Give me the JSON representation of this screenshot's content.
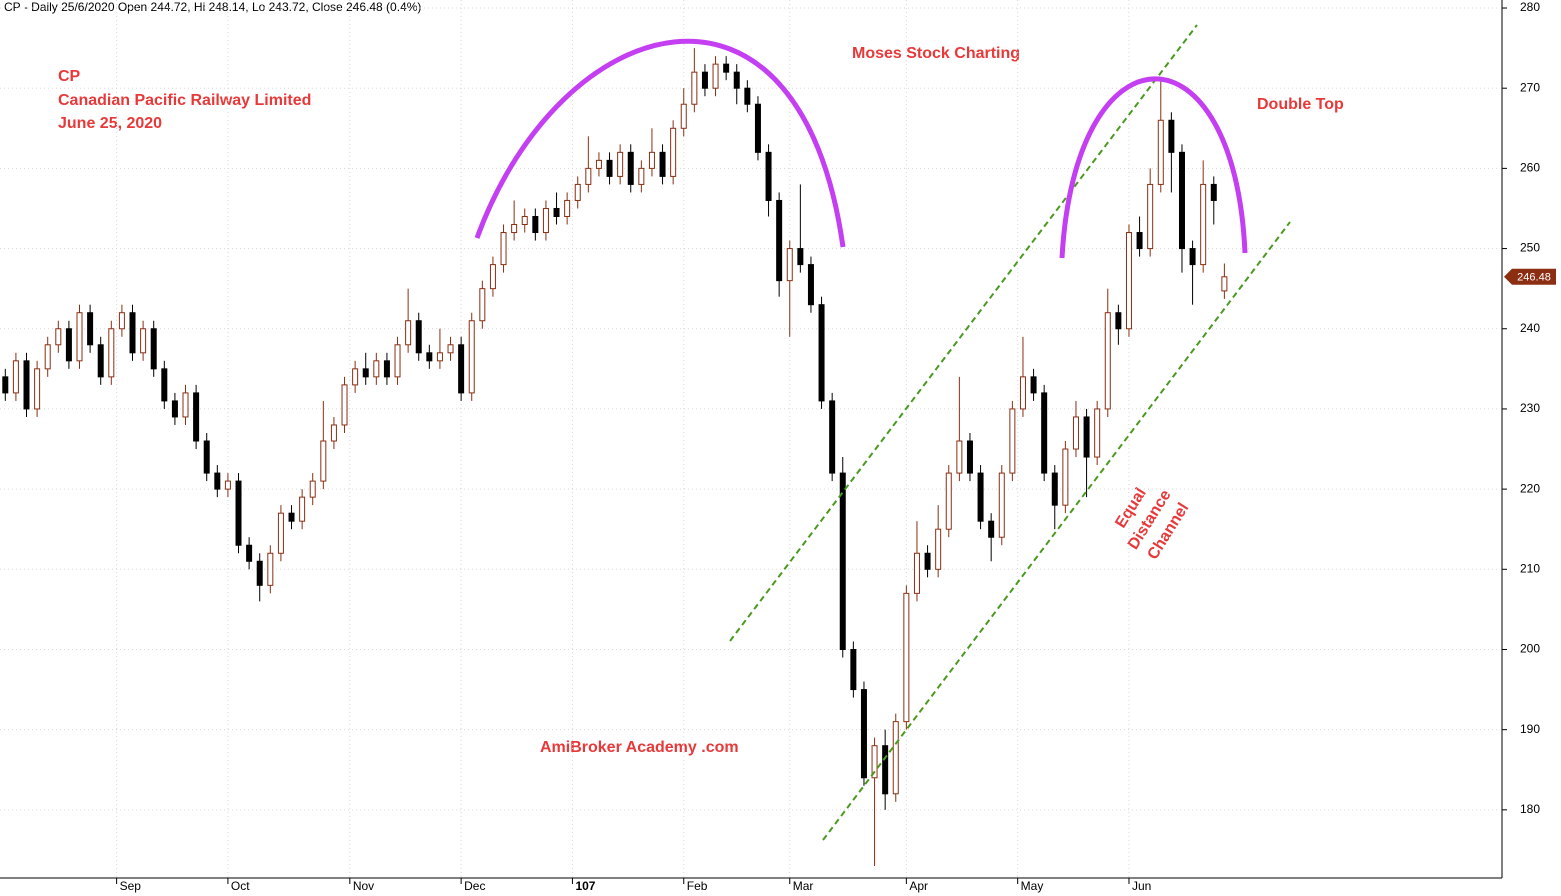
{
  "chart_data": {
    "type": "candlestick",
    "title": "CP - Daily 25/6/2020 Open 244.72, Hi 248.14, Lo 243.72, Close 246.48 (0.4%)",
    "annotations": [
      "CP",
      "Canadian Pacific Railway Limited",
      "June 25, 2020",
      "Moses Stock Charting",
      "Double Top",
      "AmiBroker Academy .com",
      "Equal",
      "Distance",
      "Channel"
    ],
    "up_color": "#8b2e12",
    "down_color": "#000000",
    "x": [
      0,
      2,
      4,
      6,
      8,
      10,
      12,
      14,
      16,
      18,
      20,
      22,
      24,
      26,
      28,
      30,
      32,
      34,
      36,
      38,
      40,
      42,
      44,
      46,
      48,
      50,
      52,
      54,
      56,
      58,
      60,
      62,
      64,
      66,
      68,
      70,
      72,
      74,
      76,
      78,
      80,
      82,
      84,
      86,
      88,
      90,
      92,
      94,
      96,
      98,
      100,
      102,
      104,
      106,
      108,
      110,
      112,
      114,
      116,
      118,
      120,
      122,
      124,
      126,
      128,
      130,
      132,
      134,
      136,
      138,
      140,
      142,
      144,
      146,
      148,
      150,
      152,
      154,
      156,
      158,
      160,
      162,
      164,
      166,
      168,
      170,
      172,
      174,
      176,
      178,
      180,
      182,
      184,
      186,
      188,
      190,
      192,
      194,
      196,
      198,
      200,
      202,
      204,
      206,
      208,
      210,
      212,
      214,
      216,
      218,
      220,
      222,
      224,
      226,
      228,
      230
    ],
    "open": [
      234,
      232,
      236,
      230,
      235,
      238,
      240,
      236,
      242,
      238,
      234,
      240,
      242,
      237,
      240,
      235,
      231,
      229,
      232,
      226,
      222,
      220,
      221,
      213,
      211,
      208,
      212,
      217,
      216,
      219,
      221,
      226,
      228,
      233,
      235,
      234,
      236,
      234,
      238,
      241,
      237,
      236,
      237,
      238,
      232,
      241,
      245,
      248,
      252,
      253,
      254,
      252,
      255,
      254,
      256,
      258,
      260,
      261,
      259,
      262,
      258,
      260,
      262,
      259,
      265,
      268,
      272,
      270,
      273,
      272,
      270,
      268,
      262,
      256,
      246,
      250,
      248,
      243,
      231,
      222,
      200,
      195,
      184,
      188,
      182,
      191,
      207,
      212,
      210,
      215,
      222,
      226,
      222,
      216,
      214,
      222,
      230,
      234,
      232,
      222,
      218,
      225,
      229,
      224,
      230,
      242,
      240,
      252,
      250,
      258,
      266,
      262,
      250,
      248,
      258,
      244.72
    ],
    "high": [
      235,
      237,
      237,
      236,
      239,
      241,
      241,
      243,
      243,
      239,
      241,
      243,
      243,
      241,
      241,
      236,
      232,
      233,
      233,
      227,
      223,
      222,
      222,
      214,
      212,
      213,
      218,
      218,
      220,
      222,
      231,
      229,
      234,
      236,
      237,
      237,
      237,
      239,
      245,
      242,
      238,
      240,
      239,
      239,
      242,
      246,
      249,
      253,
      256,
      255,
      255,
      256,
      257,
      257,
      259,
      264,
      262,
      262,
      263,
      263,
      261,
      265,
      263,
      266,
      270,
      275,
      273,
      274,
      274,
      273,
      271,
      269,
      263,
      257,
      251,
      258,
      249,
      244,
      232,
      224,
      201,
      196,
      189,
      190,
      192,
      208,
      216,
      213,
      218,
      223,
      234,
      227,
      223,
      217,
      223,
      231,
      239,
      235,
      233,
      223,
      226,
      231,
      230,
      231,
      245,
      243,
      253,
      254,
      260,
      271,
      267,
      263,
      251,
      261,
      259,
      248.14
    ],
    "low": [
      231,
      231,
      229,
      229,
      234,
      237,
      235,
      235,
      237,
      233,
      233,
      239,
      236,
      236,
      234,
      230,
      228,
      228,
      225,
      221,
      219,
      219,
      212,
      210,
      206,
      207,
      211,
      215,
      215,
      218,
      220,
      225,
      227,
      232,
      233,
      233,
      233,
      233,
      237,
      236,
      235,
      235,
      236,
      231,
      231,
      240,
      244,
      247,
      251,
      252,
      251,
      251,
      253,
      253,
      255,
      257,
      259,
      258,
      258,
      257,
      257,
      259,
      258,
      258,
      264,
      267,
      269,
      269,
      271,
      268,
      267,
      261,
      254,
      244,
      239,
      247,
      242,
      230,
      221,
      199,
      194,
      183,
      173,
      180,
      181,
      190,
      206,
      209,
      209,
      214,
      221,
      221,
      215,
      211,
      213,
      221,
      229,
      231,
      221,
      215,
      217,
      224,
      219,
      223,
      229,
      238,
      239,
      249,
      249,
      257,
      257,
      247,
      243,
      247,
      253,
      243.72
    ],
    "close": [
      232,
      236,
      230,
      235,
      238,
      240,
      236,
      242,
      238,
      234,
      240,
      242,
      237,
      240,
      235,
      231,
      229,
      232,
      226,
      222,
      220,
      221,
      213,
      211,
      208,
      212,
      217,
      216,
      219,
      221,
      226,
      228,
      233,
      235,
      234,
      236,
      234,
      238,
      241,
      237,
      236,
      237,
      238,
      232,
      241,
      245,
      248,
      252,
      253,
      254,
      252,
      255,
      254,
      256,
      258,
      260,
      261,
      259,
      262,
      258,
      260,
      262,
      259,
      265,
      268,
      272,
      270,
      273,
      272,
      270,
      268,
      262,
      256,
      246,
      250,
      248,
      243,
      231,
      222,
      200,
      195,
      184,
      188,
      182,
      191,
      207,
      212,
      210,
      215,
      222,
      226,
      222,
      216,
      214,
      222,
      230,
      234,
      232,
      222,
      218,
      225,
      229,
      224,
      230,
      242,
      240,
      252,
      250,
      258,
      266,
      262,
      250,
      248,
      258,
      256,
      246.48
    ],
    "xlim": [
      -1,
      282
    ],
    "ylim": [
      171.5,
      281
    ],
    "xticks": [
      {
        "value": 21,
        "label": "Sep"
      },
      {
        "value": 42,
        "label": "Oct"
      },
      {
        "value": 65,
        "label": "Nov"
      },
      {
        "value": 86,
        "label": "Dec"
      },
      107,
      {
        "value": 128,
        "label": "Feb"
      },
      {
        "value": 148,
        "label": "Mar"
      },
      {
        "value": 170,
        "label": "Apr"
      },
      {
        "value": 191,
        "label": "May"
      },
      {
        "value": 212,
        "label": "Jun"
      }
    ],
    "yticks": [
      180,
      190,
      200,
      210,
      220,
      230,
      240,
      250,
      260,
      270,
      280
    ],
    "grid": true
  }
}
